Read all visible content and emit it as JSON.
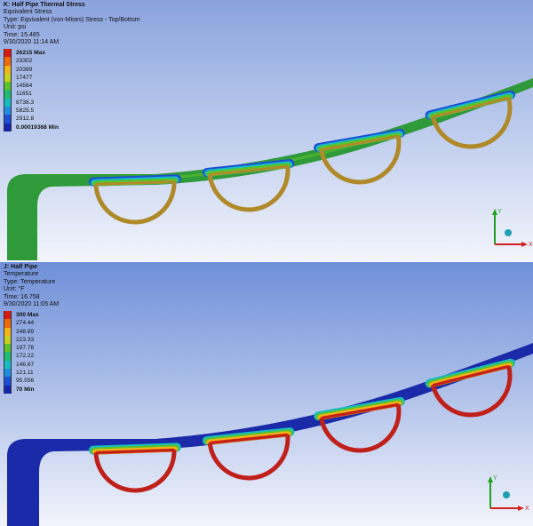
{
  "panel_top": {
    "title": "K: Half Pipe Thermal Stress",
    "result": "Equivalent Stress",
    "type": "Type: Equivalent (von-Mises) Stress - Top/Bottom",
    "unit": "Unit: psi",
    "time": "Time: 15.485",
    "date": "9/30/2020 11:14 AM",
    "legend": [
      {
        "label": "26215 Max",
        "color": "#d81a10"
      },
      {
        "label": "23302",
        "color": "#f06a0a"
      },
      {
        "label": "20389",
        "color": "#f3b418"
      },
      {
        "label": "17477",
        "color": "#c8d21e"
      },
      {
        "label": "14564",
        "color": "#5dc22a"
      },
      {
        "label": "11651",
        "color": "#1fbc72"
      },
      {
        "label": "8738.3",
        "color": "#17bcc0"
      },
      {
        "label": "5825.5",
        "color": "#1f8de0"
      },
      {
        "label": "2912.8",
        "color": "#1a4fd6"
      },
      {
        "label": "0.00019368 Min",
        "color": "#1426b0"
      }
    ]
  },
  "panel_bottom": {
    "title": "J: Half Pipe",
    "result": "Temperature",
    "type": "Type: Temperature",
    "unit": "Unit: °F",
    "time": "Time: 16.758",
    "date": "9/30/2020 11:05 AM",
    "legend": [
      {
        "label": "300 Max",
        "color": "#d81a10"
      },
      {
        "label": "274.44",
        "color": "#f06a0a"
      },
      {
        "label": "248.89",
        "color": "#f3b418"
      },
      {
        "label": "223.33",
        "color": "#c8d21e"
      },
      {
        "label": "197.78",
        "color": "#5dc22a"
      },
      {
        "label": "172.22",
        "color": "#1fbc72"
      },
      {
        "label": "146.67",
        "color": "#17bcc0"
      },
      {
        "label": "121.11",
        "color": "#1f8de0"
      },
      {
        "label": "95.556",
        "color": "#1a4fd6"
      },
      {
        "label": "70 Min",
        "color": "#1426b0"
      }
    ]
  },
  "triad": {
    "x_label": "X",
    "y_label": "Y"
  },
  "colors": {
    "stress_plate": "#2f9a3a",
    "stress_pipe": "#b08a2a",
    "temp_plate": "#1a2aa8",
    "temp_pipe": "#c0201a",
    "axis_x": "#d02020",
    "axis_y": "#20a020",
    "axis_z": "#2030c0"
  }
}
